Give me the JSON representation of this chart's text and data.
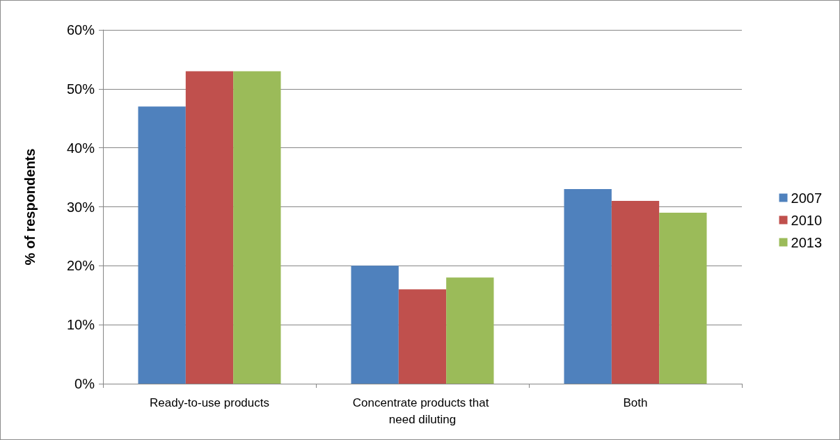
{
  "chart_data": {
    "type": "bar",
    "ylabel": "% of respondents",
    "categories": [
      "Ready-to-use products",
      "Concentrate products that need diluting",
      "Both"
    ],
    "series": [
      {
        "name": "2007",
        "color": "#4f81bd",
        "values": [
          47,
          20,
          33
        ]
      },
      {
        "name": "2010",
        "color": "#c0504d",
        "values": [
          53,
          16,
          31
        ]
      },
      {
        "name": "2013",
        "color": "#9bbb59",
        "values": [
          53,
          18,
          29
        ]
      }
    ],
    "ylim": [
      0,
      60
    ],
    "yticks": [
      {
        "value": 0,
        "label": "0%"
      },
      {
        "value": 10,
        "label": "10%"
      },
      {
        "value": 20,
        "label": "20%"
      },
      {
        "value": 30,
        "label": "30%"
      },
      {
        "value": 40,
        "label": "40%"
      },
      {
        "value": 50,
        "label": "50%"
      },
      {
        "value": 60,
        "label": "60%"
      }
    ],
    "grid": "y",
    "legend": "right"
  }
}
